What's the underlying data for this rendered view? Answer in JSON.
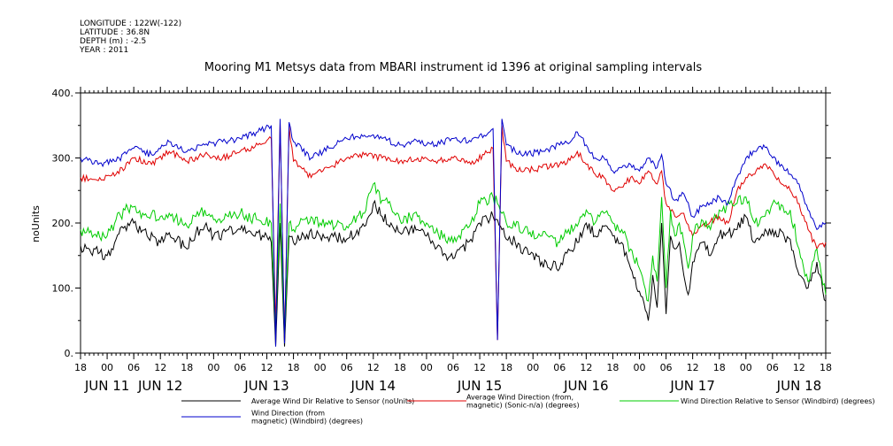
{
  "meta": {
    "longitude": "LONGITUDE : 122W(-122)",
    "latitude": "LATITUDE : 36.8N",
    "depth": "DEPTH (m) : -2.5",
    "year": "YEAR : 2011"
  },
  "chart_data": {
    "type": "line",
    "title": "Mooring M1 Metsys data from MBARI instrument id 1396 at original sampling intervals",
    "ylabel": "noUnits",
    "xlabel": "",
    "ylim": [
      0,
      400
    ],
    "y_ticks": [
      "0.",
      "100.",
      "200.",
      "300.",
      "400."
    ],
    "x_range_hours": [
      0,
      168
    ],
    "hour_labels": [
      "18",
      "00",
      "06",
      "12",
      "18",
      "00",
      "06",
      "12",
      "18",
      "00",
      "06",
      "12",
      "18",
      "00",
      "06",
      "12",
      "18",
      "00",
      "06",
      "12",
      "18",
      "00",
      "06",
      "12",
      "18",
      "00",
      "06",
      "12",
      "18"
    ],
    "date_labels": [
      {
        "label": "JUN 11",
        "hour": 6
      },
      {
        "label": "JUN 12",
        "hour": 18
      },
      {
        "label": "JUN 13",
        "hour": 42
      },
      {
        "label": "JUN 14",
        "hour": 66
      },
      {
        "label": "JUN 15",
        "hour": 90
      },
      {
        "label": "JUN 16",
        "hour": 114
      },
      {
        "label": "JUN 17",
        "hour": 138
      },
      {
        "label": "JUN 18",
        "hour": 162
      }
    ],
    "grid": false,
    "series": [
      {
        "name": "Average Wind Dir Relative to Sensor (noUnits)",
        "color": "#000000",
        "x": [
          0,
          2,
          6,
          8,
          10,
          12,
          15,
          18,
          20,
          24,
          26,
          28,
          30,
          36,
          40,
          43,
          44,
          45,
          46,
          47,
          48,
          50,
          54,
          60,
          64,
          66,
          68,
          70,
          72,
          76,
          78,
          80,
          84,
          88,
          90,
          93,
          94,
          95,
          96,
          98,
          100,
          104,
          108,
          110,
          112,
          114,
          116,
          117,
          118,
          120,
          122,
          124,
          126,
          128,
          129,
          130,
          131,
          132,
          133,
          134,
          135,
          136,
          137,
          138,
          140,
          142,
          144,
          148,
          150,
          152,
          154,
          156,
          160,
          162,
          164,
          166,
          168
        ],
        "y": [
          165,
          160,
          150,
          175,
          195,
          200,
          180,
          170,
          185,
          160,
          185,
          195,
          180,
          190,
          185,
          170,
          10,
          200,
          10,
          180,
          170,
          185,
          180,
          175,
          195,
          230,
          210,
          200,
          185,
          190,
          180,
          160,
          145,
          175,
          200,
          210,
          205,
          190,
          175,
          170,
          160,
          140,
          130,
          160,
          170,
          200,
          180,
          190,
          195,
          180,
          170,
          130,
          95,
          50,
          120,
          70,
          200,
          60,
          180,
          160,
          170,
          120,
          90,
          140,
          170,
          150,
          180,
          190,
          210,
          170,
          180,
          190,
          175,
          120,
          100,
          140,
          80
        ]
      },
      {
        "name": "Average Wind Direction (from, magnetic) (Sonic-n/a) (degrees)",
        "color": "#e00000",
        "x": [
          0,
          4,
          8,
          12,
          16,
          20,
          24,
          28,
          32,
          36,
          40,
          43,
          44,
          45,
          46,
          47,
          48,
          52,
          56,
          60,
          64,
          68,
          72,
          76,
          80,
          84,
          88,
          91,
          93,
          94,
          95,
          96,
          98,
          100,
          104,
          108,
          111,
          112,
          114,
          116,
          118,
          120,
          122,
          124,
          126,
          128,
          130,
          131,
          132,
          134,
          136,
          138,
          140,
          144,
          146,
          148,
          150,
          152,
          154,
          156,
          158,
          160,
          162,
          164,
          166,
          168
        ],
        "y": [
          270,
          265,
          275,
          300,
          290,
          310,
          295,
          305,
          300,
          310,
          320,
          330,
          40,
          355,
          20,
          350,
          295,
          270,
          285,
          300,
          305,
          300,
          295,
          300,
          295,
          300,
          290,
          305,
          315,
          20,
          350,
          295,
          285,
          280,
          285,
          290,
          300,
          310,
          290,
          275,
          270,
          250,
          255,
          270,
          260,
          280,
          260,
          280,
          230,
          210,
          215,
          180,
          195,
          210,
          200,
          250,
          270,
          275,
          290,
          280,
          260,
          250,
          230,
          190,
          160,
          170
        ]
      },
      {
        "name": "Wind Direction Relative to Sensor (Windbird) (degrees)",
        "color": "#00cc00",
        "x": [
          0,
          2,
          6,
          8,
          10,
          12,
          14,
          18,
          20,
          24,
          26,
          28,
          30,
          36,
          40,
          43,
          44,
          45,
          46,
          47,
          48,
          50,
          54,
          60,
          64,
          66,
          68,
          70,
          72,
          76,
          78,
          80,
          84,
          88,
          90,
          93,
          94,
          95,
          96,
          98,
          100,
          104,
          108,
          110,
          112,
          114,
          116,
          117,
          118,
          120,
          122,
          124,
          126,
          128,
          129,
          130,
          131,
          132,
          133,
          134,
          135,
          136,
          137,
          138,
          140,
          142,
          144,
          148,
          150,
          152,
          154,
          156,
          160,
          162,
          164,
          166,
          168
        ],
        "y": [
          190,
          185,
          180,
          205,
          220,
          225,
          215,
          210,
          215,
          195,
          210,
          220,
          205,
          215,
          205,
          200,
          30,
          230,
          25,
          200,
          190,
          205,
          200,
          195,
          215,
          260,
          235,
          225,
          205,
          210,
          200,
          185,
          170,
          200,
          230,
          240,
          230,
          215,
          200,
          195,
          190,
          180,
          170,
          190,
          195,
          220,
          200,
          210,
          215,
          200,
          190,
          160,
          130,
          80,
          150,
          110,
          240,
          100,
          220,
          180,
          200,
          170,
          130,
          180,
          205,
          190,
          220,
          230,
          240,
          200,
          210,
          230,
          220,
          160,
          110,
          160,
          90
        ]
      },
      {
        "name": "Wind Direction (from, magnetic) (Windbird) (degrees)",
        "color": "#0000cc",
        "x": [
          0,
          4,
          8,
          12,
          16,
          20,
          24,
          28,
          32,
          36,
          40,
          43,
          44,
          45,
          46,
          47,
          48,
          52,
          56,
          60,
          64,
          68,
          72,
          76,
          80,
          84,
          88,
          91,
          93,
          94,
          95,
          96,
          98,
          100,
          104,
          108,
          111,
          112,
          114,
          116,
          118,
          120,
          122,
          124,
          126,
          128,
          130,
          131,
          132,
          134,
          136,
          138,
          140,
          144,
          146,
          148,
          150,
          152,
          154,
          156,
          158,
          160,
          162,
          164,
          166,
          168
        ],
        "y": [
          300,
          290,
          295,
          315,
          305,
          325,
          310,
          320,
          325,
          330,
          340,
          350,
          10,
          360,
          15,
          355,
          325,
          300,
          315,
          330,
          335,
          330,
          320,
          325,
          320,
          330,
          325,
          335,
          345,
          20,
          360,
          320,
          310,
          305,
          310,
          320,
          330,
          340,
          320,
          300,
          300,
          280,
          285,
          290,
          280,
          300,
          285,
          305,
          260,
          235,
          245,
          210,
          225,
          240,
          230,
          270,
          300,
          310,
          320,
          300,
          290,
          275,
          260,
          220,
          190,
          200
        ]
      }
    ],
    "legend_lines": [
      [
        "Average Wind Dir Relative to Sensor (noUnits)"
      ],
      [
        "Average Wind Direction (from,",
        "magnetic) (Sonic-n/a) (degrees)"
      ],
      [
        "Wind Direction Relative to Sensor (Windbird) (degrees)"
      ],
      [
        "Wind Direction (from",
        "magnetic) (Windbird) (degrees)"
      ]
    ]
  }
}
